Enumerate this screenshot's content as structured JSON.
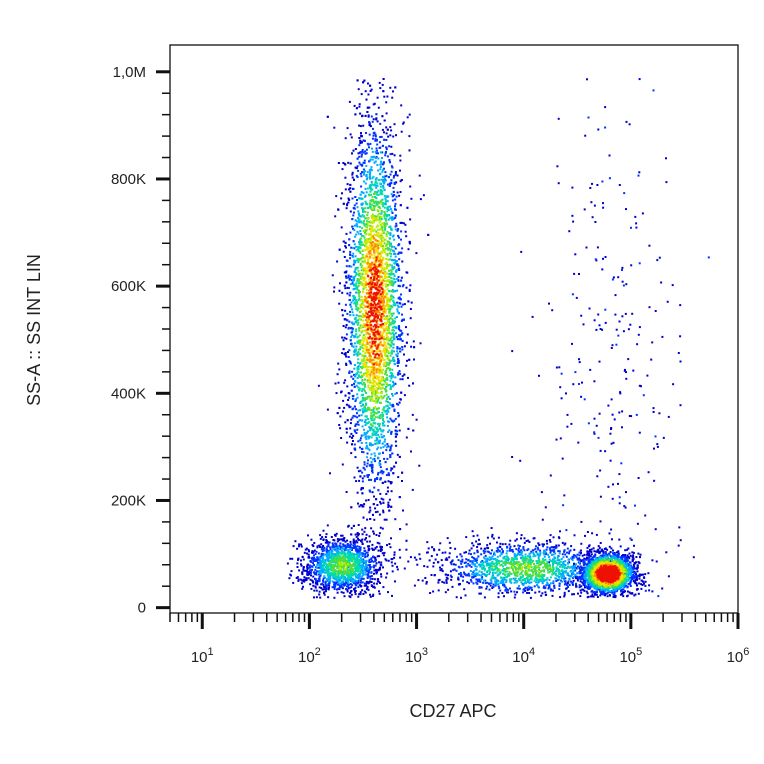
{
  "chart_data": {
    "type": "scatter",
    "subtype": "flow-cytometry density dot plot",
    "xlabel": "CD27 APC",
    "ylabel": "SS-A :: SS INT LIN",
    "x_scale": "log",
    "y_scale": "linear",
    "xlim": [
      5,
      1000000
    ],
    "ylim": [
      -10000,
      1050000
    ],
    "grid": false,
    "legend": "none",
    "x_ticks": [
      {
        "value": 10,
        "base": "10",
        "exp": "1"
      },
      {
        "value": 100,
        "base": "10",
        "exp": "2"
      },
      {
        "value": 1000,
        "base": "10",
        "exp": "3"
      },
      {
        "value": 10000,
        "base": "10",
        "exp": "4"
      },
      {
        "value": 100000,
        "base": "10",
        "exp": "5"
      },
      {
        "value": 1000000,
        "base": "10",
        "exp": "6"
      }
    ],
    "y_ticks": [
      {
        "value": 0,
        "label": "0"
      },
      {
        "value": 200000,
        "label": "200K"
      },
      {
        "value": 400000,
        "label": "400K"
      },
      {
        "value": 600000,
        "label": "600K"
      },
      {
        "value": 800000,
        "label": "800K"
      },
      {
        "value": 1000000,
        "label": "1,0M"
      }
    ],
    "density_colors": [
      "#0000cc",
      "#0033ff",
      "#00aaff",
      "#00ddaa",
      "#55dd33",
      "#bbee00",
      "#ffdd00",
      "#ff8800",
      "#ee1100"
    ],
    "populations": [
      {
        "x_center": 400,
        "y_center": 560000,
        "x_log_spread": 0.13,
        "y_spread": 170000,
        "density": "high"
      },
      {
        "x_center": 200,
        "y_center": 80000,
        "x_log_spread": 0.18,
        "y_spread": 25000,
        "density": "medium"
      },
      {
        "x_center": 60000,
        "y_center": 65000,
        "x_log_spread": 0.12,
        "y_spread": 18000,
        "density": "very high"
      },
      {
        "x_center": 10000,
        "y_center": 75000,
        "x_log_spread": 0.4,
        "y_spread": 25000,
        "density": "medium"
      },
      {
        "x_center": 60000,
        "y_center": 450000,
        "x_log_spread": 0.35,
        "y_spread": 250000,
        "density": "low"
      }
    ]
  }
}
